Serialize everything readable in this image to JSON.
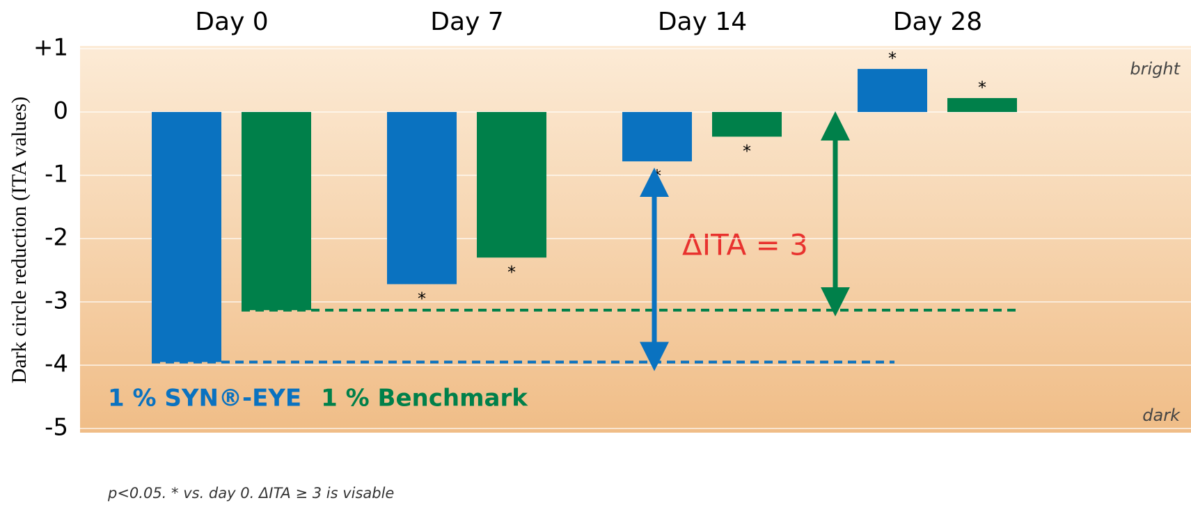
{
  "chart_data": {
    "type": "bar",
    "y_label": "Dark circle reduction (ITA values)",
    "categories": [
      "Day 0",
      "Day 7",
      "Day 14",
      "Day 28"
    ],
    "series": [
      {
        "name": "1 % SYN®-EYE",
        "color": "#0a72c0",
        "values": [
          -3.95,
          -2.72,
          -0.78,
          0.68
        ],
        "marks": [
          null,
          "*",
          "*",
          "*"
        ]
      },
      {
        "name": "1 % Benchmark",
        "color": "#00804a",
        "values": [
          -3.13,
          -2.3,
          -0.39,
          0.22
        ],
        "marks": [
          null,
          "*",
          "*",
          "*"
        ]
      }
    ],
    "ylim": [
      -5,
      1
    ],
    "yticks": [
      -5,
      -4,
      -3,
      -2,
      -1,
      0,
      {
        "value": 1,
        "label": "+1"
      }
    ],
    "grid": true,
    "top_note": "bright",
    "bottom_note": "dark",
    "delta_label": "ΔITA = 3",
    "footnote": "p<0.05.  * vs. day 0.  ΔITA ≥ 3 is visable"
  }
}
